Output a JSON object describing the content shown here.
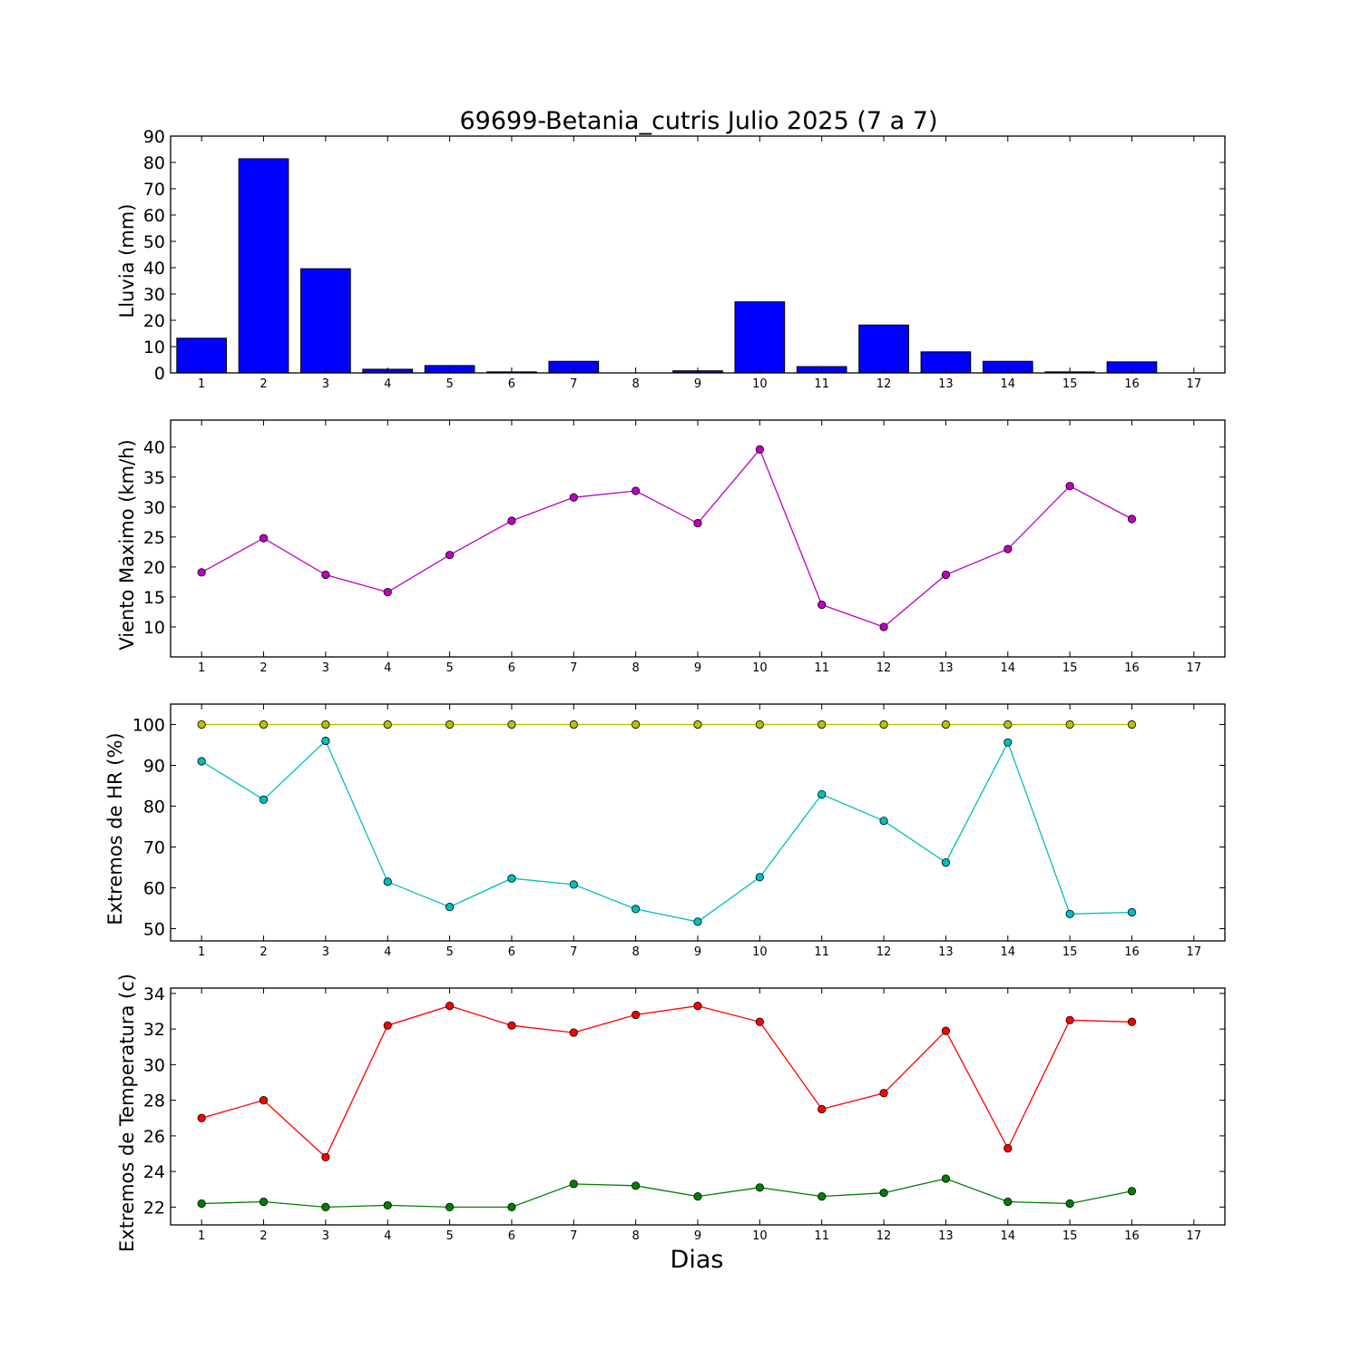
{
  "chart_data": [
    {
      "type": "bar",
      "title": "69699-Betania_cutris Julio 2025  (7 a 7)",
      "xlabel": "",
      "ylabel": "Lluvia (mm)",
      "x": [
        1,
        2,
        3,
        4,
        5,
        6,
        7,
        8,
        9,
        10,
        11,
        12,
        13,
        14,
        15,
        16
      ],
      "xticks": [
        "1",
        "2",
        "3",
        "4",
        "5",
        "6",
        "7",
        "8",
        "9",
        "10",
        "11",
        "12",
        "13",
        "14",
        "15",
        "16",
        "17"
      ],
      "xlim": [
        0.5,
        17.5
      ],
      "ylim": [
        0,
        90
      ],
      "yticks": [
        0,
        10,
        20,
        30,
        40,
        50,
        60,
        70,
        80,
        90
      ],
      "values": [
        13.2,
        81.4,
        39.6,
        1.4,
        2.8,
        0.4,
        4.4,
        0.0,
        0.8,
        27.0,
        2.4,
        18.2,
        8.0,
        4.4,
        0.4,
        4.2
      ],
      "color": "#0000ff",
      "grid": false
    },
    {
      "type": "line",
      "ylabel": "Viento Maximo (km/h)",
      "x": [
        1,
        2,
        3,
        4,
        5,
        6,
        7,
        8,
        9,
        10,
        11,
        12,
        13,
        14,
        15,
        16
      ],
      "xticks": [
        "1",
        "2",
        "3",
        "4",
        "5",
        "6",
        "7",
        "8",
        "9",
        "10",
        "11",
        "12",
        "13",
        "14",
        "15",
        "16",
        "17"
      ],
      "xlim": [
        0.5,
        17.5
      ],
      "ylim": [
        5,
        44.5
      ],
      "yticks": [
        10,
        15,
        20,
        25,
        30,
        35,
        40
      ],
      "series": [
        {
          "values": [
            19.1,
            24.8,
            18.7,
            15.8,
            22.0,
            27.7,
            31.6,
            32.7,
            27.3,
            39.6,
            13.7,
            10.0,
            18.7,
            23.0,
            33.5,
            28.0
          ],
          "color": "#bf00bf"
        }
      ],
      "grid": false
    },
    {
      "type": "line",
      "ylabel": "Extremos de HR (%)",
      "x": [
        1,
        2,
        3,
        4,
        5,
        6,
        7,
        8,
        9,
        10,
        11,
        12,
        13,
        14,
        15,
        16
      ],
      "xticks": [
        "1",
        "2",
        "3",
        "4",
        "5",
        "6",
        "7",
        "8",
        "9",
        "10",
        "11",
        "12",
        "13",
        "14",
        "15",
        "16",
        "17"
      ],
      "xlim": [
        0.5,
        17.5
      ],
      "ylim": [
        47,
        105
      ],
      "yticks": [
        50,
        60,
        70,
        80,
        90,
        100
      ],
      "series": [
        {
          "values": [
            100,
            100,
            100,
            100,
            100,
            100,
            100,
            100,
            100,
            100,
            100,
            100,
            100,
            100,
            100,
            100
          ],
          "color": "#bfbf00"
        },
        {
          "values": [
            91.0,
            81.6,
            96.0,
            61.5,
            55.3,
            62.3,
            60.8,
            54.8,
            51.7,
            62.6,
            82.9,
            76.4,
            66.2,
            95.6,
            53.6,
            54.0
          ],
          "color": "#00bfbf"
        }
      ],
      "grid": false
    },
    {
      "type": "line",
      "ylabel": "Extremos de Temperatura (c)",
      "xlabel": "Dias",
      "x": [
        1,
        2,
        3,
        4,
        5,
        6,
        7,
        8,
        9,
        10,
        11,
        12,
        13,
        14,
        15,
        16
      ],
      "xticks": [
        "1",
        "2",
        "3",
        "4",
        "5",
        "6",
        "7",
        "8",
        "9",
        "10",
        "11",
        "12",
        "13",
        "14",
        "15",
        "16",
        "17"
      ],
      "xlim": [
        0.5,
        17.5
      ],
      "ylim": [
        21,
        34.3
      ],
      "yticks": [
        22,
        24,
        26,
        28,
        30,
        32,
        34
      ],
      "series": [
        {
          "values": [
            27.0,
            28.0,
            24.8,
            32.2,
            33.3,
            32.2,
            31.8,
            32.8,
            33.3,
            32.4,
            27.5,
            28.4,
            31.9,
            25.3,
            32.5,
            32.4
          ],
          "color": "#ff0000"
        },
        {
          "values": [
            22.2,
            22.3,
            22.0,
            22.1,
            22.0,
            22.0,
            23.3,
            23.2,
            22.6,
            23.1,
            22.6,
            22.8,
            23.6,
            22.3,
            22.2,
            22.9
          ],
          "color": "#008000"
        }
      ],
      "grid": false
    }
  ]
}
